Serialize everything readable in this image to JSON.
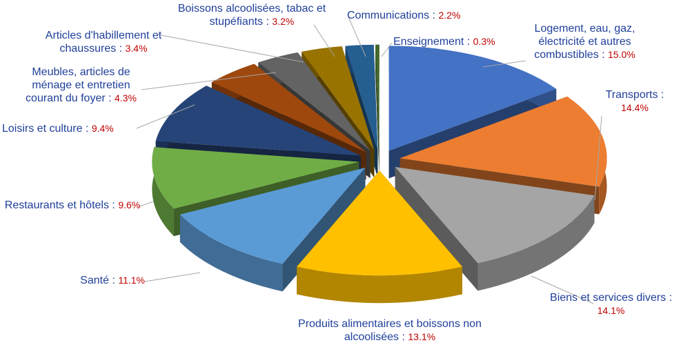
{
  "chart_data": {
    "type": "pie3d",
    "categories": [
      "Logement, eau, gaz, électricité et autres combustibles :",
      "Transports :",
      "Biens et services divers :",
      "Produits alimentaires et boissons non alcoolisées :",
      "Santé :",
      "Restaurants et hôtels :",
      "Loisirs et culture :",
      "Meubles, articles de ménage et entretien courant du foyer :",
      "Articles d'habillement et chaussures :",
      "Boissons alcoolisées, tabac et stupéfiants :",
      "Communications :",
      "Enseignement :"
    ],
    "values": [
      15.0,
      14.4,
      14.1,
      13.1,
      11.1,
      9.6,
      9.4,
      4.3,
      3.4,
      3.2,
      2.2,
      0.3
    ],
    "value_labels": [
      "15.0%",
      "14.4%",
      "14.1%",
      "13.1%",
      "11.1%",
      "9.6%",
      "9.4%",
      "4.3%",
      "3.4%",
      "3.2%",
      "2.2%",
      "0.3%"
    ],
    "colors": [
      "#4472c4",
      "#ed7d31",
      "#a5a5a5",
      "#ffc000",
      "#5b9bd5",
      "#70ad47",
      "#264478",
      "#9e480e",
      "#636363",
      "#997300",
      "#255e91",
      "#43682b"
    ]
  }
}
